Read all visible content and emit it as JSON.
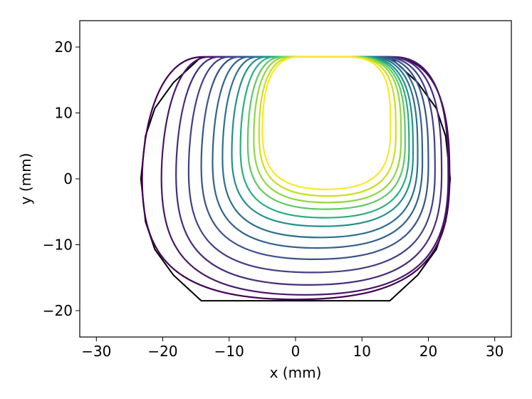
{
  "chart_data": {
    "type": "line",
    "title": "",
    "xlabel": "x (mm)",
    "ylabel": "y (mm)",
    "xlim": [
      -32.5,
      32.5
    ],
    "ylim": [
      -24,
      24
    ],
    "xticks": [
      -30,
      -20,
      -10,
      0,
      10,
      20,
      30
    ],
    "yticks": [
      -20,
      -10,
      0,
      10,
      20
    ],
    "xtick_labels": [
      "−30",
      "−20",
      "−10",
      "0",
      "10",
      "20",
      "30"
    ],
    "ytick_labels": [
      "−20",
      "−10",
      "0",
      "10",
      "20"
    ],
    "grid": false,
    "colormap": "viridis",
    "boundary": {
      "color": "#000000",
      "points": [
        [
          -14.2,
          18.5
        ],
        [
          14.2,
          18.5
        ],
        [
          18.4,
          14.6
        ],
        [
          21.2,
          10.7
        ],
        [
          22.6,
          6.5
        ],
        [
          23.3,
          0
        ],
        [
          22.6,
          -6.5
        ],
        [
          21.2,
          -10.7
        ],
        [
          18.4,
          -14.6
        ],
        [
          14.2,
          -18.5
        ],
        [
          -14.2,
          -18.5
        ],
        [
          -18.4,
          -14.6
        ],
        [
          -21.2,
          -10.7
        ],
        [
          -22.6,
          -6.5
        ],
        [
          -23.3,
          0
        ],
        [
          -22.6,
          6.5
        ],
        [
          -21.2,
          10.7
        ],
        [
          -18.4,
          14.6
        ],
        [
          -14.2,
          18.5
        ]
      ]
    },
    "contours": [
      {
        "color": "#440154",
        "x_left": -23.1,
        "x_right": 23.2,
        "y_bottom": -18.3,
        "top_left": -14.0,
        "top_right": 14.0,
        "center_y": 0
      },
      {
        "color": "#48186a",
        "x_left": -20.2,
        "x_right": 23.0,
        "y_bottom": -17.6,
        "top_left": -13.0,
        "top_right": 14.8,
        "center_y": 0.2
      },
      {
        "color": "#472d7b",
        "x_left": -18.0,
        "x_right": 22.0,
        "y_bottom": -16.1,
        "top_left": -11.5,
        "top_right": 14.0,
        "center_y": 0.7
      },
      {
        "color": "#424086",
        "x_left": -16.1,
        "x_right": 21.0,
        "y_bottom": -14.2,
        "top_left": -10.0,
        "top_right": 13.3,
        "center_y": 1.2
      },
      {
        "color": "#3b528b",
        "x_left": -14.2,
        "x_right": 20.0,
        "y_bottom": -12.2,
        "top_left": -8.5,
        "top_right": 12.6,
        "center_y": 1.9
      },
      {
        "color": "#33638d",
        "x_left": -12.5,
        "x_right": 19.1,
        "y_bottom": -10.5,
        "top_left": -7.0,
        "top_right": 11.9,
        "center_y": 2.5
      },
      {
        "color": "#2c728e",
        "x_left": -11.0,
        "x_right": 18.4,
        "y_bottom": -8.9,
        "top_left": -5.7,
        "top_right": 11.2,
        "center_y": 3.2
      },
      {
        "color": "#21918c",
        "x_left": -9.6,
        "x_right": 17.7,
        "y_bottom": -7.2,
        "top_left": -4.4,
        "top_right": 10.5,
        "center_y": 3.8
      },
      {
        "color": "#28ae80",
        "x_left": -8.3,
        "x_right": 17.1,
        "y_bottom": -5.9,
        "top_left": -3.2,
        "top_right": 9.9,
        "center_y": 4.5
      },
      {
        "color": "#5ec962",
        "x_left": -7.2,
        "x_right": 16.5,
        "y_bottom": -4.6,
        "top_left": -2.1,
        "top_right": 9.3,
        "center_y": 5.3
      },
      {
        "color": "#8fd744",
        "x_left": -6.3,
        "x_right": 15.9,
        "y_bottom": -3.6,
        "top_left": -1.2,
        "top_right": 8.8,
        "center_y": 6.0
      },
      {
        "color": "#c8e020",
        "x_left": -5.5,
        "x_right": 15.1,
        "y_bottom": -2.6,
        "top_left": -0.3,
        "top_right": 8.3,
        "center_y": 6.7
      },
      {
        "color": "#fde725",
        "x_left": -5.0,
        "x_right": 14.3,
        "y_bottom": -1.6,
        "top_left": 0.4,
        "top_right": 7.8,
        "center_y": 7.4
      }
    ]
  }
}
